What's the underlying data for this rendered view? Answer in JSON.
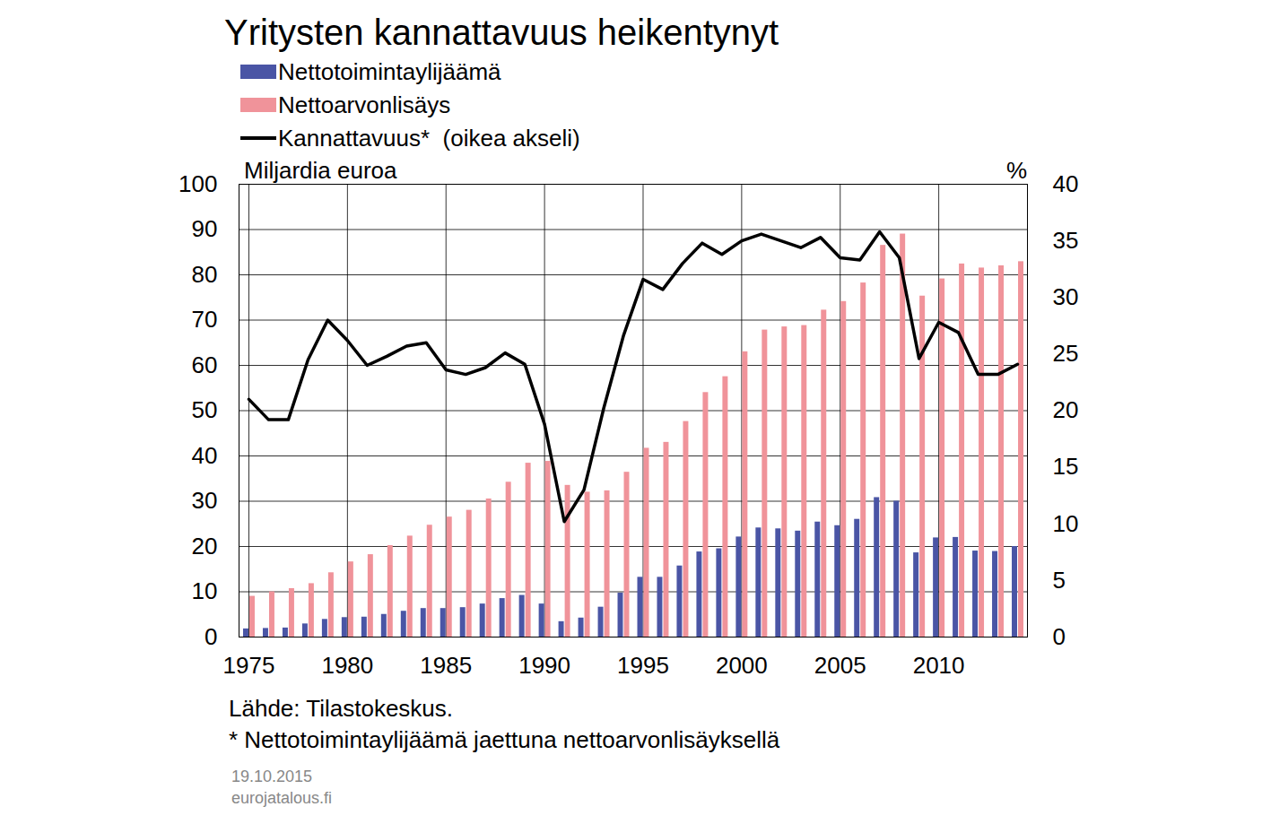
{
  "chart_data": {
    "type": "bar",
    "title": "Yritysten kannattavuus heikentynyt",
    "y_label": "Miljardia euroa",
    "y2_label": "%",
    "annotations": [
      "Lähde: Tilastokeskus.",
      "* Nettotoimintaylijäämä jaettuna nettoarvonlisäyksellä",
      "19.10.2015",
      "eurojatalous.fi"
    ],
    "x": [
      1975,
      1976,
      1977,
      1978,
      1979,
      1980,
      1981,
      1982,
      1983,
      1984,
      1985,
      1986,
      1987,
      1988,
      1989,
      1990,
      1991,
      1992,
      1993,
      1994,
      1995,
      1996,
      1997,
      1998,
      1999,
      2000,
      2001,
      2002,
      2003,
      2004,
      2005,
      2006,
      2007,
      2008,
      2009,
      2010,
      2011,
      2012,
      2013,
      2014
    ],
    "xlim": [
      1974.5,
      2014.5
    ],
    "xticks": [
      1975,
      1980,
      1985,
      1990,
      1995,
      2000,
      2005,
      2010
    ],
    "ylim": [
      0,
      100
    ],
    "yticks": [
      0,
      10,
      20,
      30,
      40,
      50,
      60,
      70,
      80,
      90,
      100
    ],
    "y2lim": [
      0,
      40
    ],
    "y2ticks": [
      0,
      5,
      10,
      15,
      20,
      25,
      30,
      35,
      40
    ],
    "grid": true,
    "legend": "top-left",
    "series": [
      {
        "name": "Nettotoimintaylijäämä",
        "type": "bar",
        "color": "#4a55a5",
        "values": [
          1.8,
          1.9,
          2.0,
          2.9,
          3.9,
          4.3,
          4.4,
          5.0,
          5.7,
          6.3,
          6.3,
          6.5,
          7.3,
          8.5,
          9.2,
          7.3,
          3.4,
          4.2,
          6.6,
          9.7,
          13.2,
          13.2,
          15.7,
          18.8,
          19.5,
          22.1,
          24.1,
          23.9,
          23.4,
          25.4,
          24.6,
          26.0,
          30.8,
          30.0,
          18.6,
          21.9,
          22.0,
          19.0,
          18.9,
          20.0
        ]
      },
      {
        "name": "Nettoarvonlisäys",
        "type": "bar",
        "color": "#f0939a",
        "values": [
          9.0,
          10.0,
          10.7,
          11.8,
          14.2,
          16.6,
          18.2,
          20.2,
          22.3,
          24.7,
          26.5,
          28.0,
          30.5,
          34.2,
          38.4,
          38.8,
          33.5,
          32.0,
          32.3,
          36.4,
          41.7,
          43.0,
          47.6,
          54.0,
          57.5,
          63.0,
          67.8,
          68.5,
          68.8,
          72.2,
          74.1,
          78.2,
          86.5,
          89.0,
          75.3,
          79.1,
          82.4,
          81.5,
          82.0,
          82.9
        ]
      },
      {
        "name": "Kannattavuus*  (oikea akseli)",
        "type": "line",
        "axis": "y2",
        "color": "#000000",
        "line_style": "solid",
        "values": [
          21.0,
          19.2,
          19.2,
          24.5,
          28.0,
          26.2,
          24.0,
          24.8,
          25.7,
          26.0,
          23.6,
          23.2,
          23.8,
          25.1,
          24.1,
          18.8,
          10.2,
          13.0,
          20.2,
          26.6,
          31.6,
          30.7,
          33.0,
          34.8,
          33.8,
          35.0,
          35.6,
          35.0,
          34.4,
          35.3,
          33.5,
          33.3,
          35.8,
          33.5,
          24.6,
          27.8,
          26.9,
          23.2,
          23.2,
          24.1
        ]
      }
    ]
  }
}
